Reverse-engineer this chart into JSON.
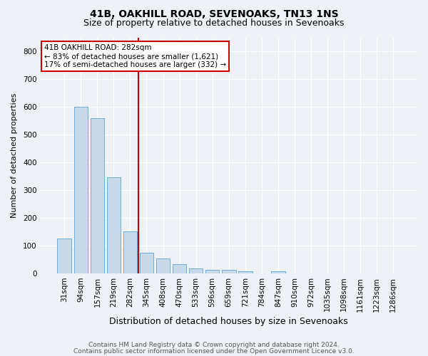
{
  "title1": "41B, OAKHILL ROAD, SEVENOAKS, TN13 1NS",
  "title2": "Size of property relative to detached houses in Sevenoaks",
  "xlabel": "Distribution of detached houses by size in Sevenoaks",
  "ylabel": "Number of detached properties",
  "categories": [
    "31sqm",
    "94sqm",
    "157sqm",
    "219sqm",
    "282sqm",
    "345sqm",
    "408sqm",
    "470sqm",
    "533sqm",
    "596sqm",
    "659sqm",
    "721sqm",
    "784sqm",
    "847sqm",
    "910sqm",
    "972sqm",
    "1035sqm",
    "1098sqm",
    "1161sqm",
    "1223sqm",
    "1286sqm"
  ],
  "values": [
    125,
    600,
    560,
    347,
    150,
    75,
    53,
    32,
    17,
    13,
    13,
    7,
    0,
    8,
    0,
    0,
    0,
    0,
    0,
    0,
    0
  ],
  "bar_color": "#c8d9ea",
  "bar_edge_color": "#6aaed6",
  "vline_x_index": 4,
  "vline_color": "#cc0000",
  "annotation_title": "41B OAKHILL ROAD: 282sqm",
  "annotation_line1": "← 83% of detached houses are smaller (1,621)",
  "annotation_line2": "17% of semi-detached houses are larger (332) →",
  "annotation_box_color": "#ffffff",
  "annotation_box_edge": "#cc0000",
  "ylim": [
    0,
    850
  ],
  "yticks": [
    0,
    100,
    200,
    300,
    400,
    500,
    600,
    700,
    800
  ],
  "footer1": "Contains HM Land Registry data © Crown copyright and database right 2024.",
  "footer2": "Contains public sector information licensed under the Open Government Licence v3.0.",
  "bg_color": "#eef2f7",
  "plot_bg_color": "#eef2f7",
  "title1_fontsize": 10,
  "title2_fontsize": 9,
  "xlabel_fontsize": 9,
  "ylabel_fontsize": 8,
  "tick_fontsize": 7.5,
  "footer_fontsize": 6.5
}
